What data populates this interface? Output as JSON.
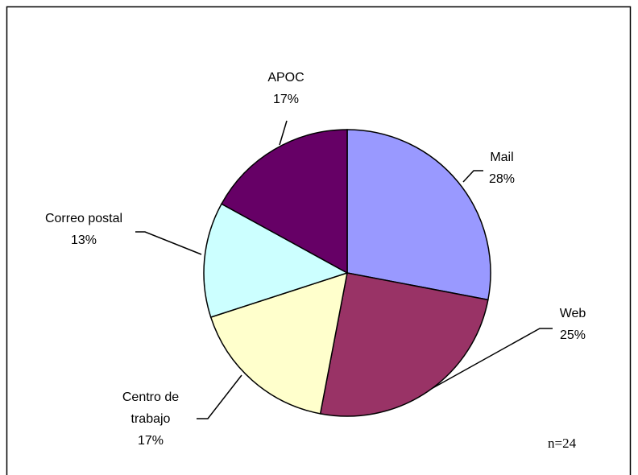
{
  "chart_data": {
    "type": "pie",
    "categories": [
      "Mail",
      "Web",
      "Centro de trabajo",
      "Correo postal",
      "APOC"
    ],
    "values": [
      28,
      25,
      17,
      13,
      17
    ],
    "value_labels": [
      "28%",
      "25%",
      "17%",
      "13%",
      "17%"
    ],
    "colors": [
      "#9999ff",
      "#993366",
      "#ffffcc",
      "#ccffff",
      "#660066"
    ],
    "annotation": "n=24"
  }
}
